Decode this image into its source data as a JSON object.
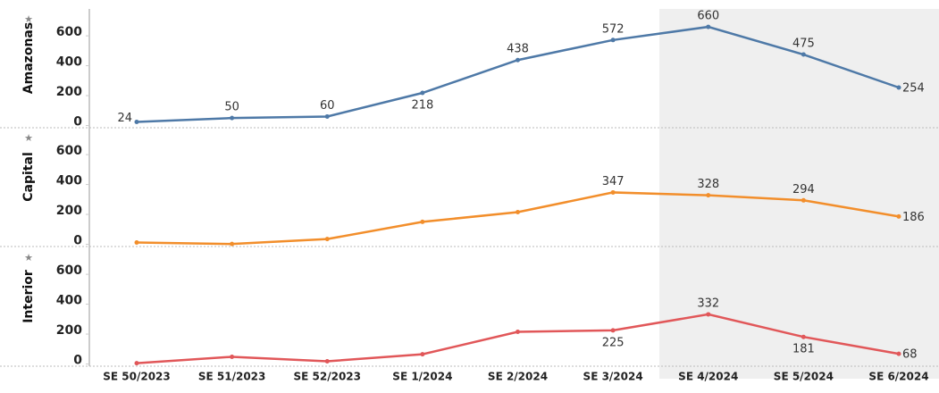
{
  "chart_data": {
    "type": "line",
    "categories": [
      "SE 50/2023",
      "SE 51/2023",
      "SE 52/2023",
      "SE 1/2024",
      "SE 2/2024",
      "SE 3/2024",
      "SE 4/2024",
      "SE 5/2024",
      "SE 6/2024"
    ],
    "series": [
      {
        "name": "Amazonas",
        "color": "#4e79a7",
        "values": [
          24,
          50,
          60,
          218,
          438,
          572,
          660,
          475,
          254
        ],
        "value_labels": [
          24,
          50,
          60,
          218,
          438,
          572,
          660,
          475,
          254
        ]
      },
      {
        "name": "Capital",
        "color": "#f28e2b",
        "values": [
          12,
          2,
          35,
          150,
          215,
          347,
          328,
          294,
          186
        ],
        "value_labels": [
          null,
          null,
          null,
          null,
          null,
          347,
          328,
          294,
          186
        ]
      },
      {
        "name": "Interior",
        "color": "#e15759",
        "values": [
          5,
          48,
          18,
          65,
          215,
          225,
          332,
          181,
          68
        ],
        "value_labels": [
          null,
          null,
          null,
          null,
          null,
          225,
          332,
          181,
          68
        ]
      }
    ],
    "ylim": [
      -15,
      780
    ],
    "yticks": [
      0,
      200,
      400,
      600
    ]
  }
}
